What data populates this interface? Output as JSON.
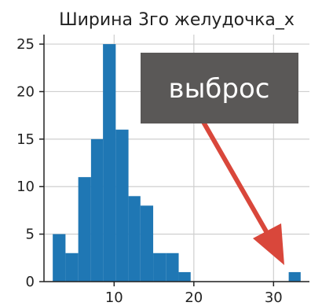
{
  "chart_data": {
    "type": "histogram",
    "title": "Ширина 3го желудочка_x",
    "xlabel": "",
    "ylabel": "",
    "xlim": [
      1.2,
      34.5
    ],
    "ylim": [
      0,
      26
    ],
    "grid": true,
    "bar_color": "#1f77b4",
    "bins": [
      {
        "x0": 2.3,
        "x1": 3.9,
        "count": 5
      },
      {
        "x0": 3.9,
        "x1": 5.5,
        "count": 3
      },
      {
        "x0": 5.5,
        "x1": 7.1,
        "count": 11
      },
      {
        "x0": 7.1,
        "x1": 8.6,
        "count": 15
      },
      {
        "x0": 8.6,
        "x1": 10.2,
        "count": 25
      },
      {
        "x0": 10.2,
        "x1": 11.8,
        "count": 16
      },
      {
        "x0": 11.8,
        "x1": 13.3,
        "count": 9
      },
      {
        "x0": 13.3,
        "x1": 14.9,
        "count": 8
      },
      {
        "x0": 14.9,
        "x1": 16.5,
        "count": 3
      },
      {
        "x0": 16.5,
        "x1": 18.1,
        "count": 3
      },
      {
        "x0": 18.1,
        "x1": 19.6,
        "count": 1
      },
      {
        "x0": 31.9,
        "x1": 33.4,
        "count": 1
      }
    ],
    "xticks": [
      10,
      20,
      30
    ],
    "yticks": [
      0,
      5,
      10,
      15,
      20,
      25
    ],
    "annotation": {
      "text": "выброс",
      "box_color": "#5a5857",
      "arrow_color": "#d9473b"
    }
  }
}
